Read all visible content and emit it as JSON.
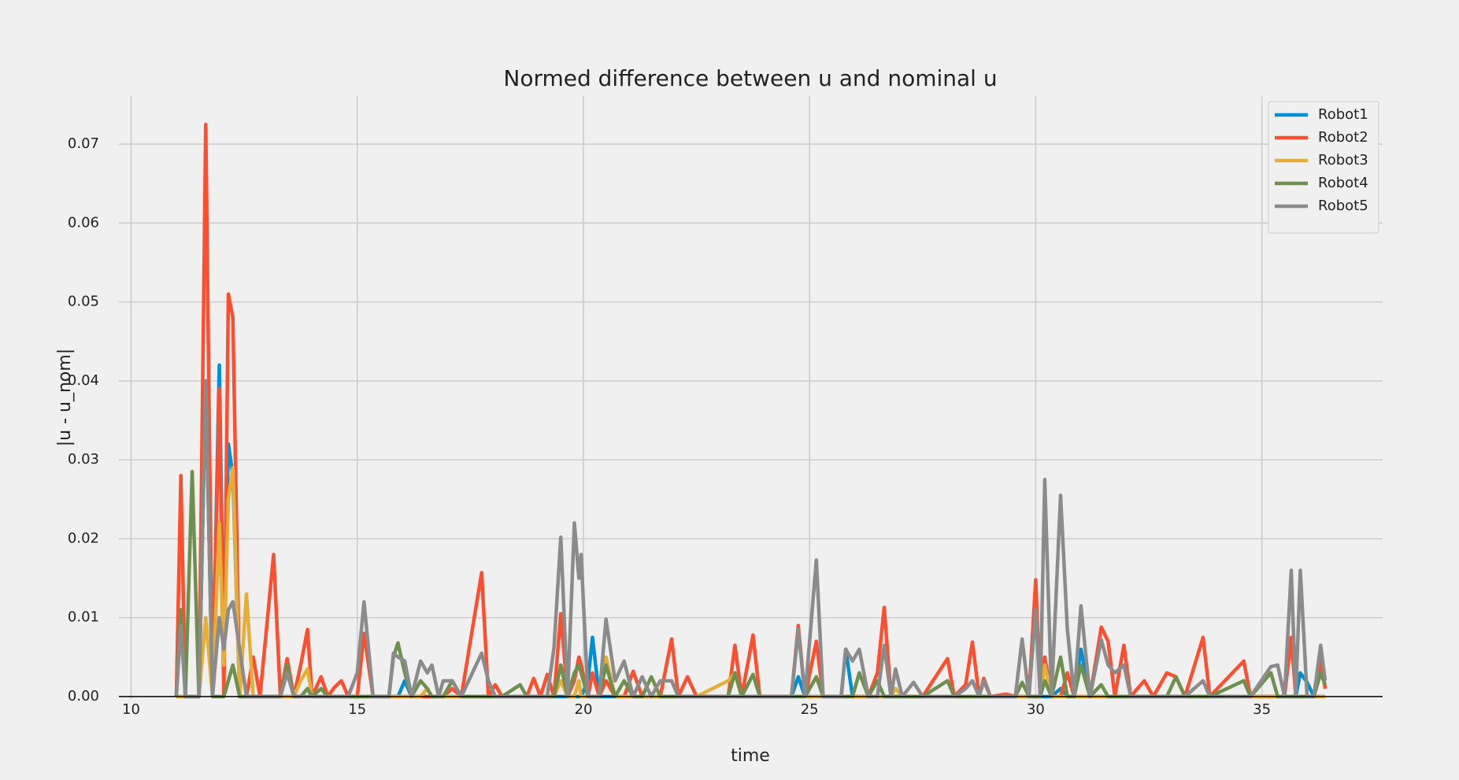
{
  "chart_data": {
    "type": "line",
    "title": "Normed difference between u and nominal u",
    "xlabel": "time",
    "ylabel": "|u - u_nom|",
    "x": [
      11,
      11.1,
      11.2,
      11.35,
      11.5,
      11.65,
      11.8,
      11.95,
      12.05,
      12.15,
      12.25,
      12.4,
      12.55,
      12.7,
      12.85,
      13.15,
      13.3,
      13.45,
      13.6,
      13.75,
      13.9,
      14,
      14.2,
      14.35,
      14.5,
      14.65,
      14.8,
      15,
      15.15,
      15.35,
      15.7,
      15.8,
      15.9,
      16.05,
      16.2,
      16.4,
      16.55,
      16.65,
      16.8,
      16.9,
      17.1,
      17.3,
      17.75,
      17.9,
      18.05,
      18.2,
      18.6,
      18.75,
      18.9,
      19.05,
      19.2,
      19.35,
      19.5,
      19.65,
      19.8,
      19.9,
      19.95,
      20.1,
      20.2,
      20.35,
      20.5,
      20.7,
      20.9,
      21.1,
      21.3,
      21.5,
      21.7,
      21.95,
      22.1,
      22.3,
      22.5,
      23.2,
      23.35,
      23.5,
      23.75,
      23.9,
      24.6,
      24.75,
      24.9,
      25.15,
      25.3,
      25.7,
      25.8,
      25.95,
      26.1,
      26.3,
      26.5,
      26.65,
      26.8,
      26.9,
      27.05,
      27.3,
      27.5,
      28.05,
      28.2,
      28.45,
      28.6,
      28.75,
      28.85,
      29,
      29.35,
      29.55,
      29.7,
      29.85,
      30,
      30.1,
      30.2,
      30.35,
      30.55,
      30.7,
      30.85,
      31,
      31.2,
      31.45,
      31.6,
      31.75,
      31.95,
      32.1,
      32.4,
      32.6,
      32.9,
      33.1,
      33.3,
      33.7,
      33.85,
      34.6,
      34.75,
      35.2,
      35.35,
      35.5,
      35.65,
      35.75,
      35.85,
      36,
      36.15,
      36.3,
      36.4
    ],
    "series": [
      {
        "name": "Robot1",
        "color": "#008fd5",
        "values": [
          0,
          0,
          0,
          0,
          0,
          0.04,
          0,
          0.042,
          0.005,
          0.032,
          0.028,
          0,
          0,
          0,
          0,
          0,
          0,
          0,
          0,
          0,
          0.001,
          0,
          0,
          0,
          0,
          0,
          0,
          0,
          0,
          0,
          0,
          0,
          0,
          0.002,
          0,
          0,
          0,
          0,
          0,
          0,
          0,
          0,
          0,
          0,
          0,
          0,
          0,
          0,
          0,
          0,
          0,
          0,
          0,
          0,
          0,
          0,
          0,
          0.002,
          0.0075,
          0,
          0,
          0,
          0,
          0,
          0,
          0,
          0,
          0,
          0,
          0,
          0,
          0,
          0,
          0,
          0,
          0,
          0,
          0.0025,
          0,
          0,
          0,
          0,
          0.006,
          0,
          0,
          0,
          0,
          0,
          0,
          0,
          0,
          0,
          0,
          0,
          0,
          0,
          0,
          0,
          0,
          0,
          0,
          0,
          0,
          0,
          0,
          0,
          0,
          0,
          0.001,
          0,
          0,
          0.006,
          0,
          0,
          0,
          0,
          0,
          0,
          0,
          0,
          0,
          0,
          0,
          0,
          0,
          0,
          0,
          0,
          0,
          0,
          0,
          0,
          0.003,
          0.0018,
          0,
          0,
          0
        ]
      },
      {
        "name": "Robot2",
        "color": "#fc4f30",
        "values": [
          0,
          0.028,
          0,
          0,
          0,
          0.0725,
          0,
          0.039,
          0,
          0.051,
          0.048,
          0,
          0,
          0.005,
          0,
          0.018,
          0,
          0.0048,
          0,
          0.004,
          0.0085,
          0,
          0.0025,
          0,
          0.0012,
          0.002,
          0,
          0,
          0.008,
          0,
          0,
          0,
          0,
          0,
          0,
          0,
          0,
          0,
          0,
          0,
          0.001,
          0,
          0.0157,
          0,
          0.0015,
          0,
          0,
          0,
          0.0023,
          0,
          0.0028,
          0,
          0.0105,
          0,
          0.002,
          0.005,
          0.004,
          0,
          0.003,
          0,
          0.002,
          0,
          0,
          0.0032,
          0,
          0,
          0,
          0.0073,
          0,
          0.0025,
          0,
          0,
          0.0065,
          0,
          0.0078,
          0,
          0,
          0.009,
          0,
          0.007,
          0,
          0,
          0,
          0,
          0,
          0,
          0.003,
          0.0113,
          0,
          0,
          0,
          0,
          0,
          0.0048,
          0,
          0.0015,
          0.0069,
          0,
          0.0023,
          0,
          0.0003,
          0,
          0,
          0,
          0.0148,
          0,
          0.005,
          0,
          0,
          0.003,
          0,
          0,
          0,
          0.0088,
          0.007,
          0,
          0.0065,
          0,
          0.002,
          0,
          0.003,
          0.0025,
          0,
          0.0075,
          0,
          0.0045,
          0,
          0,
          0,
          0,
          0.0075,
          0,
          0,
          0,
          0,
          0.0045,
          0.001
        ]
      },
      {
        "name": "Robot3",
        "color": "#e5ae38",
        "values": [
          0,
          0,
          0,
          0,
          0,
          0.01,
          0,
          0.022,
          0.004,
          0.025,
          0.029,
          0,
          0.013,
          0,
          0,
          0,
          0,
          0,
          0,
          0.002,
          0.0035,
          0,
          0,
          0,
          0,
          0,
          0,
          0,
          0,
          0,
          0,
          0,
          0,
          0,
          0,
          0,
          0.001,
          0,
          0,
          0,
          0,
          0,
          0,
          0,
          0,
          0,
          0,
          0,
          0,
          0,
          0,
          0,
          0.002,
          0,
          0,
          0.002,
          0,
          0,
          0,
          0,
          0.005,
          0,
          0,
          0,
          0,
          0,
          0,
          0,
          0,
          0,
          0,
          0.002,
          0.003,
          0,
          0,
          0,
          0,
          0,
          0,
          0,
          0,
          0,
          0,
          0,
          0,
          0,
          0,
          0,
          0,
          0.001,
          0,
          0,
          0,
          0,
          0,
          0,
          0,
          0,
          0,
          0,
          0,
          0,
          0,
          0,
          0,
          0,
          0.004,
          0,
          0,
          0,
          0,
          0,
          0,
          0,
          0,
          0,
          0,
          0,
          0,
          0,
          0,
          0,
          0,
          0,
          0,
          0,
          0,
          0,
          0,
          0,
          0,
          0,
          0,
          0,
          0,
          0,
          0
        ]
      },
      {
        "name": "Robot4",
        "color": "#6d904f",
        "values": [
          0,
          0.011,
          0,
          0.0285,
          0,
          0.04,
          0,
          0,
          0,
          0.002,
          0.004,
          0,
          0,
          0,
          0,
          0,
          0,
          0.004,
          0,
          0,
          0.001,
          0,
          0.001,
          0,
          0,
          0,
          0,
          0,
          0,
          0,
          0,
          0.005,
          0.0068,
          0.003,
          0,
          0.002,
          0.001,
          0,
          0,
          0,
          0.002,
          0,
          0,
          0,
          0,
          0,
          0.0015,
          0,
          0,
          0,
          0,
          0,
          0.004,
          0,
          0.003,
          0.004,
          0.003,
          0,
          0,
          0,
          0.004,
          0,
          0.002,
          0,
          0,
          0.0025,
          0,
          0,
          0,
          0,
          0,
          0,
          0.003,
          0,
          0.0028,
          0,
          0,
          0,
          0,
          0.0025,
          0,
          0,
          0,
          0,
          0.003,
          0,
          0.002,
          0,
          0,
          0,
          0,
          0,
          0,
          0.002,
          0,
          0,
          0,
          0,
          0,
          0,
          0,
          0,
          0.0018,
          0,
          0,
          0,
          0.002,
          0,
          0.005,
          0,
          0,
          0.004,
          0,
          0.0015,
          0,
          0,
          0,
          0,
          0,
          0,
          0,
          0.0025,
          0,
          0,
          0,
          0.002,
          0,
          0.003,
          0,
          0,
          0,
          0,
          0,
          0,
          0,
          0.003,
          0.0015
        ]
      },
      {
        "name": "Robot5",
        "color": "#8b8b8b",
        "values": [
          0,
          0.009,
          0,
          0,
          0,
          0.04,
          0,
          0.01,
          0.006,
          0.011,
          0.012,
          0.006,
          0,
          0,
          0,
          0,
          0,
          0.003,
          0,
          0,
          0,
          0,
          0,
          0,
          0,
          0,
          0,
          0.003,
          0.012,
          0,
          0,
          0.0055,
          0.005,
          0.0045,
          0,
          0.0045,
          0.003,
          0.004,
          0,
          0.002,
          0.002,
          0,
          0.0055,
          0.002,
          0,
          0,
          0,
          0,
          0,
          0,
          0,
          0.0062,
          0.0202,
          0,
          0.022,
          0.015,
          0.018,
          0,
          0,
          0,
          0.0098,
          0.002,
          0.0045,
          0,
          0.0025,
          0,
          0.002,
          0.002,
          0,
          0,
          0,
          0,
          0,
          0,
          0,
          0,
          0,
          0.0085,
          0,
          0.0173,
          0,
          0,
          0.006,
          0.0045,
          0.006,
          0,
          0,
          0.0065,
          0,
          0.0035,
          0,
          0.0018,
          0,
          0,
          0,
          0.001,
          0.002,
          0,
          0.002,
          0,
          0,
          0,
          0.0073,
          0,
          0.011,
          0,
          0.0275,
          0,
          0.0255,
          0.0085,
          0,
          0.0115,
          0,
          0.0072,
          0.004,
          0.003,
          0.004,
          0,
          0,
          0,
          0,
          0,
          0,
          0.002,
          0,
          0,
          0,
          0.0038,
          0.004,
          0,
          0.016,
          0,
          0.016,
          0,
          0,
          0.0065,
          0.002
        ]
      }
    ],
    "xlim": [
      9.73,
      37.67
    ],
    "ylim": [
      -0.0003,
      0.0761
    ],
    "xticks": [
      10,
      15,
      20,
      25,
      30,
      35
    ],
    "yticks": [
      {
        "value": 0,
        "label": "0.00"
      },
      0.01,
      0.02,
      0.03,
      0.04,
      0.05,
      0.06,
      0.07
    ],
    "hline": 0,
    "grid": true,
    "legend": "upper right"
  }
}
